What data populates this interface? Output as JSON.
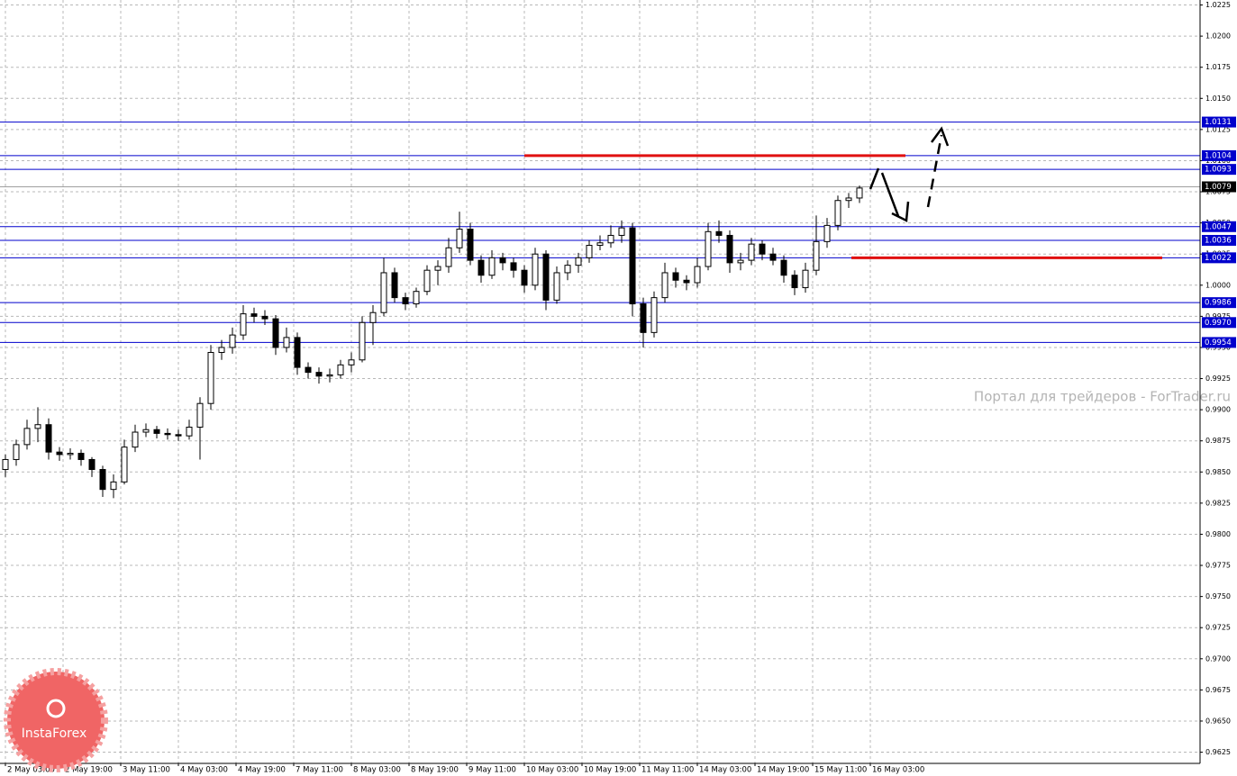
{
  "chart_data": {
    "type": "candlestick",
    "watermark": "Портал для трейдеров - ForTrader.ru",
    "logo": "InstaForex",
    "ylim": [
      0.9616,
      1.0229
    ],
    "yticks": [
      1.0225,
      {
        "value": 1.02,
        "label": "1.0200"
      },
      1.0175,
      {
        "value": 1.015,
        "label": "1.0150"
      },
      1.0125,
      {
        "value": 1.01,
        "label": "1.0100"
      },
      1.0075,
      {
        "value": 1.005,
        "label": "1.0050"
      },
      1.0025,
      {
        "value": 1.0,
        "label": "1.0000"
      },
      0.9975,
      {
        "value": 0.995,
        "label": "0.9950"
      },
      0.9925,
      {
        "value": 0.99,
        "label": "0.9900"
      },
      0.9875,
      {
        "value": 0.985,
        "label": "0.9850"
      },
      0.9825,
      {
        "value": 0.98,
        "label": "0.9800"
      },
      0.9775,
      {
        "value": 0.975,
        "label": "0.9750"
      },
      0.9725,
      {
        "value": 0.97,
        "label": "0.9700"
      },
      0.9675,
      {
        "value": 0.965,
        "label": "0.9650"
      },
      0.9625
    ],
    "xlabels": [
      "2 May 03:00",
      "2 May 19:00",
      "3 May 11:00",
      "4 May 03:00",
      "4 May 19:00",
      "7 May 11:00",
      "8 May 03:00",
      "8 May 19:00",
      "9 May 11:00",
      "10 May 03:00",
      "10 May 19:00",
      "11 May 11:00",
      "14 May 03:00",
      "14 May 19:00",
      "15 May 11:00",
      "16 May 03:00"
    ],
    "grid": true,
    "levels": [
      1.0131,
      1.0104,
      1.0093,
      1.0047,
      1.0036,
      1.0022,
      0.9986,
      0.997,
      0.9954
    ],
    "level_labels": [
      "1.0131",
      "1.0104",
      "1.0093",
      "1.0047",
      "1.0036",
      "1.0022",
      "0.9986",
      "0.9970",
      "0.9954"
    ],
    "level_color": "#0000cc",
    "current_price": 1.0079,
    "red_lines": [
      1.0104,
      1.0022
    ],
    "red_color": "#e01010",
    "open": [
      0.9852,
      0.986,
      0.9872,
      0.9885,
      0.9888,
      0.9866,
      0.9864,
      0.9865,
      0.986,
      0.9852,
      0.9836,
      0.9842,
      0.987,
      0.9882,
      0.9884,
      0.9881,
      0.988,
      0.9879,
      0.9886,
      0.9905,
      0.9946,
      0.995,
      0.996,
      0.9977,
      0.9975,
      0.9973,
      0.995,
      0.9958,
      0.9934,
      0.993,
      0.9927,
      0.9928,
      0.9936,
      0.994,
      0.997,
      0.9978,
      1.001,
      0.999,
      0.9985,
      0.9995,
      1.0012,
      1.0015,
      1.003,
      1.0045,
      1.002,
      1.0008,
      1.0022,
      1.0018,
      1.0012,
      1.0,
      1.0025,
      0.9988,
      1.001,
      1.0016,
      1.0022,
      1.0032,
      1.0034,
      1.004,
      1.0046,
      0.9985,
      0.9962,
      0.999,
      1.001,
      1.0004,
      1.0002,
      1.0015,
      1.0043,
      1.004,
      1.0018,
      1.002,
      1.0033,
      1.0025,
      1.002,
      1.0008,
      0.9998,
      1.0012,
      1.0035,
      1.0048,
      1.0068,
      1.007
    ],
    "high": [
      0.9864,
      0.9876,
      0.9892,
      0.9902,
      0.9893,
      0.987,
      0.9869,
      0.9868,
      0.9862,
      0.9855,
      0.9848,
      0.9876,
      0.9888,
      0.9889,
      0.9887,
      0.9885,
      0.9884,
      0.9892,
      0.991,
      0.9952,
      0.9956,
      0.9966,
      0.9984,
      0.9982,
      0.998,
      0.9976,
      0.9966,
      0.9962,
      0.9938,
      0.9934,
      0.9933,
      0.994,
      0.9946,
      0.9975,
      0.9984,
      1.0022,
      1.0014,
      0.9994,
      0.9998,
      1.0016,
      1.002,
      1.0038,
      1.0059,
      1.005,
      1.0024,
      1.0028,
      1.0026,
      1.0022,
      1.0016,
      1.003,
      1.0028,
      1.0015,
      1.002,
      1.0026,
      1.0036,
      1.004,
      1.0048,
      1.0052,
      1.005,
      0.999,
      0.9995,
      1.0018,
      1.0014,
      1.0008,
      1.0022,
      1.005,
      1.0052,
      1.0044,
      1.0026,
      1.0038,
      1.0036,
      1.003,
      1.0024,
      1.0012,
      1.0018,
      1.0056,
      1.0054,
      1.0072,
      1.0074,
      1.008
    ],
    "low": [
      0.9846,
      0.9855,
      0.9868,
      0.9874,
      0.986,
      0.9859,
      0.986,
      0.9855,
      0.9846,
      0.983,
      0.9829,
      0.984,
      0.9866,
      0.9878,
      0.9877,
      0.9876,
      0.9875,
      0.9876,
      0.986,
      0.99,
      0.994,
      0.9945,
      0.9956,
      0.997,
      0.9968,
      0.9944,
      0.9946,
      0.9928,
      0.9925,
      0.9921,
      0.9922,
      0.9925,
      0.993,
      0.9938,
      0.9952,
      0.9975,
      0.9986,
      0.998,
      0.9982,
      0.9992,
      1.0,
      1.001,
      1.0026,
      1.0016,
      1.0002,
      1.0005,
      1.0012,
      1.0006,
      0.9994,
      0.9996,
      0.998,
      0.9985,
      1.0004,
      1.001,
      1.0018,
      1.0028,
      1.003,
      1.0034,
      0.9975,
      0.995,
      0.9958,
      0.9986,
      0.9998,
      0.9996,
      0.9998,
      1.0012,
      1.0034,
      1.001,
      1.0012,
      1.0016,
      1.002,
      1.0016,
      1.0002,
      0.9992,
      0.9994,
      1.0008,
      1.003,
      1.0044,
      1.0062,
      1.0066
    ],
    "close": [
      0.986,
      0.9872,
      0.9885,
      0.9888,
      0.9866,
      0.9864,
      0.9865,
      0.986,
      0.9852,
      0.9836,
      0.9842,
      0.987,
      0.9882,
      0.9884,
      0.9881,
      0.988,
      0.9879,
      0.9886,
      0.9905,
      0.9946,
      0.995,
      0.996,
      0.9977,
      0.9975,
      0.9973,
      0.995,
      0.9958,
      0.9934,
      0.993,
      0.9927,
      0.9928,
      0.9936,
      0.994,
      0.997,
      0.9978,
      1.001,
      0.999,
      0.9985,
      0.9995,
      1.0012,
      1.0015,
      1.003,
      1.0045,
      1.002,
      1.0008,
      1.0022,
      1.0018,
      1.0012,
      1.0,
      1.0025,
      0.9988,
      1.001,
      1.0016,
      1.0022,
      1.0032,
      1.0034,
      1.004,
      1.0046,
      0.9985,
      0.9962,
      0.999,
      1.001,
      1.0004,
      1.0002,
      1.0015,
      1.0043,
      1.004,
      1.0018,
      1.002,
      1.0033,
      1.0025,
      1.002,
      1.0008,
      0.9998,
      1.0012,
      1.0035,
      1.0048,
      1.0068,
      1.007,
      1.0078
    ]
  }
}
